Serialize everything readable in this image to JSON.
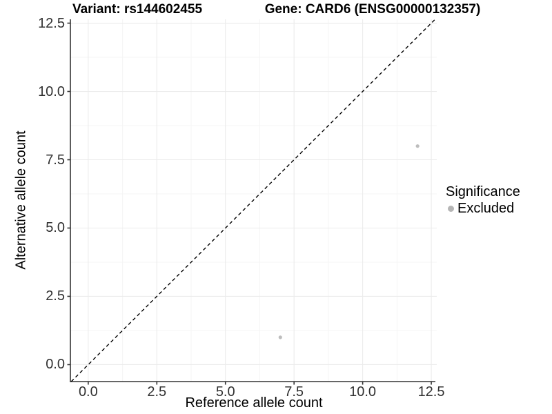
{
  "chart_data": {
    "type": "scatter",
    "titles": {
      "left": "Variant: rs144602455",
      "right": "Gene: CARD6 (ENSG00000132357)"
    },
    "xlabel": "Reference allele count",
    "ylabel": "Alternative allele count",
    "x_tick_labels": [
      "0.0",
      "2.5",
      "5.0",
      "7.5",
      "10.0",
      "12.5"
    ],
    "y_tick_labels": [
      "0.0",
      "2.5",
      "5.0",
      "7.5",
      "10.0",
      "12.5"
    ],
    "xlim": [
      -0.65,
      12.7
    ],
    "ylim": [
      -0.62,
      12.64
    ],
    "grid": {
      "major": true,
      "minor": true
    },
    "identity_line": {
      "show": true,
      "style": "dashed",
      "slope": 1,
      "intercept": 0,
      "color": "#000000"
    },
    "series": [
      {
        "name": "Excluded",
        "color": "#bdbdbd",
        "point_radius": 2.6,
        "points": [
          {
            "x": 12,
            "y": 8
          },
          {
            "x": 7,
            "y": 1
          }
        ]
      }
    ],
    "legend": {
      "title": "Significance",
      "position": "right",
      "items": [
        {
          "label": "Excluded",
          "color": "#b5b5b5"
        }
      ]
    },
    "colors": {
      "background": "#ffffff",
      "axis_line": "#333333",
      "tick_mark": "#333333",
      "tick_text": "#303030",
      "grid_major": "#ebebeb",
      "grid_minor": "#f5f5f5",
      "title_text": "#000000"
    }
  }
}
